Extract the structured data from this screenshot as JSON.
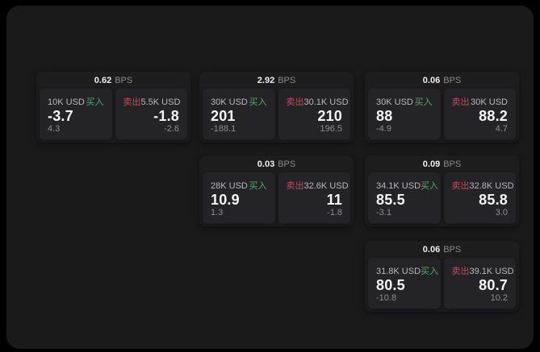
{
  "labels": {
    "unit": "BPS",
    "buy": "买入",
    "sell": "卖出"
  },
  "colors": {
    "buy_green": "#4aac6d",
    "sell_red": "#bf4d5c",
    "surface": "#1a1a1b",
    "card": "#1d1d1e",
    "panel": "#242427",
    "price_text": "#f4f4f5",
    "muted_text": "#8e8e90"
  },
  "cards": [
    {
      "bps": "0.62",
      "buy": {
        "amount": "10K USD",
        "price": "-3.7",
        "delta": "4.3"
      },
      "sell": {
        "amount": "5.5K USD",
        "price": "-1.8",
        "delta": "-2.6"
      }
    },
    {
      "bps": "2.92",
      "buy": {
        "amount": "30K USD",
        "price": "201",
        "delta": "-188.1"
      },
      "sell": {
        "amount": "30.1K USD",
        "price": "210",
        "delta": "196.5"
      }
    },
    {
      "bps": "0.06",
      "buy": {
        "amount": "30K USD",
        "price": "88",
        "delta": "-4.9"
      },
      "sell": {
        "amount": "30K USD",
        "price": "88.2",
        "delta": "4.7"
      }
    },
    {
      "bps": "0.03",
      "buy": {
        "amount": "28K USD",
        "price": "10.9",
        "delta": "1.3"
      },
      "sell": {
        "amount": "32.6K USD",
        "price": "11",
        "delta": "-1.8"
      }
    },
    {
      "bps": "0.09",
      "buy": {
        "amount": "34.1K USD",
        "price": "85.5",
        "delta": "-3.1"
      },
      "sell": {
        "amount": "32.8K USD",
        "price": "85.8",
        "delta": "3.0"
      }
    },
    {
      "bps": "0.06",
      "buy": {
        "amount": "31.8K USD",
        "price": "80.5",
        "delta": "-10.8"
      },
      "sell": {
        "amount": "39.1K USD",
        "price": "80.7",
        "delta": "10.2"
      }
    }
  ]
}
